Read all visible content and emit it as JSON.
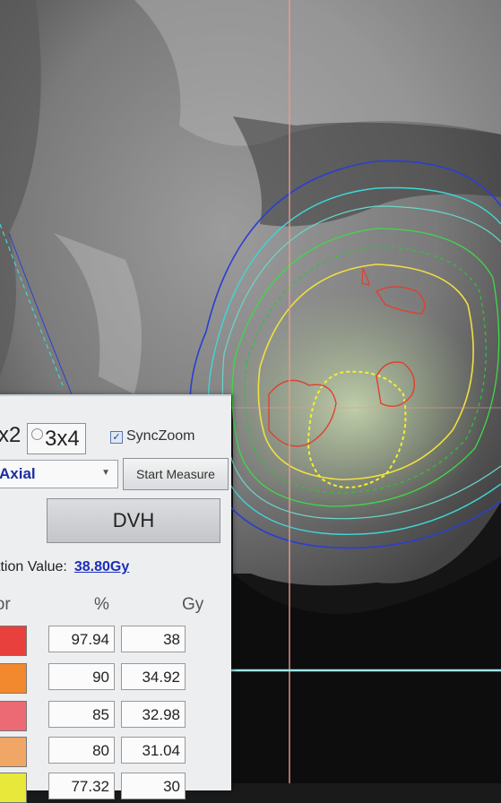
{
  "layout_options": {
    "opt_2x2": "x2",
    "opt_3x4": "3x4"
  },
  "sync_zoom": {
    "label": "SyncZoom",
    "checked": true
  },
  "view_select": {
    "value": "Axial"
  },
  "start_measure_label": "Start Measure",
  "dvh_label": "DVH",
  "normalization": {
    "label": "ization Value:",
    "value": "38.80Gy"
  },
  "isodose_table": {
    "headers": {
      "color": "olor",
      "percent": "%",
      "gy": "Gy"
    },
    "rows": [
      {
        "color": "#e8403c",
        "percent": "97.94",
        "gy": "38"
      },
      {
        "color": "#f2892e",
        "percent": "90",
        "gy": "34.92"
      },
      {
        "color": "#ec6a73",
        "percent": "85",
        "gy": "32.98"
      },
      {
        "color": "#f0a766",
        "percent": "80",
        "gy": "31.04"
      },
      {
        "color": "#e8e83a",
        "percent": "77.32",
        "gy": "30"
      }
    ]
  },
  "colors": {
    "isodose_blue": "#2a3fd0",
    "isodose_cyan": "#40d6d6",
    "isodose_green": "#3fd84a",
    "isodose_yellow": "#f0e040",
    "isodose_red": "#e04030",
    "crosshair": "#e89b8a"
  }
}
